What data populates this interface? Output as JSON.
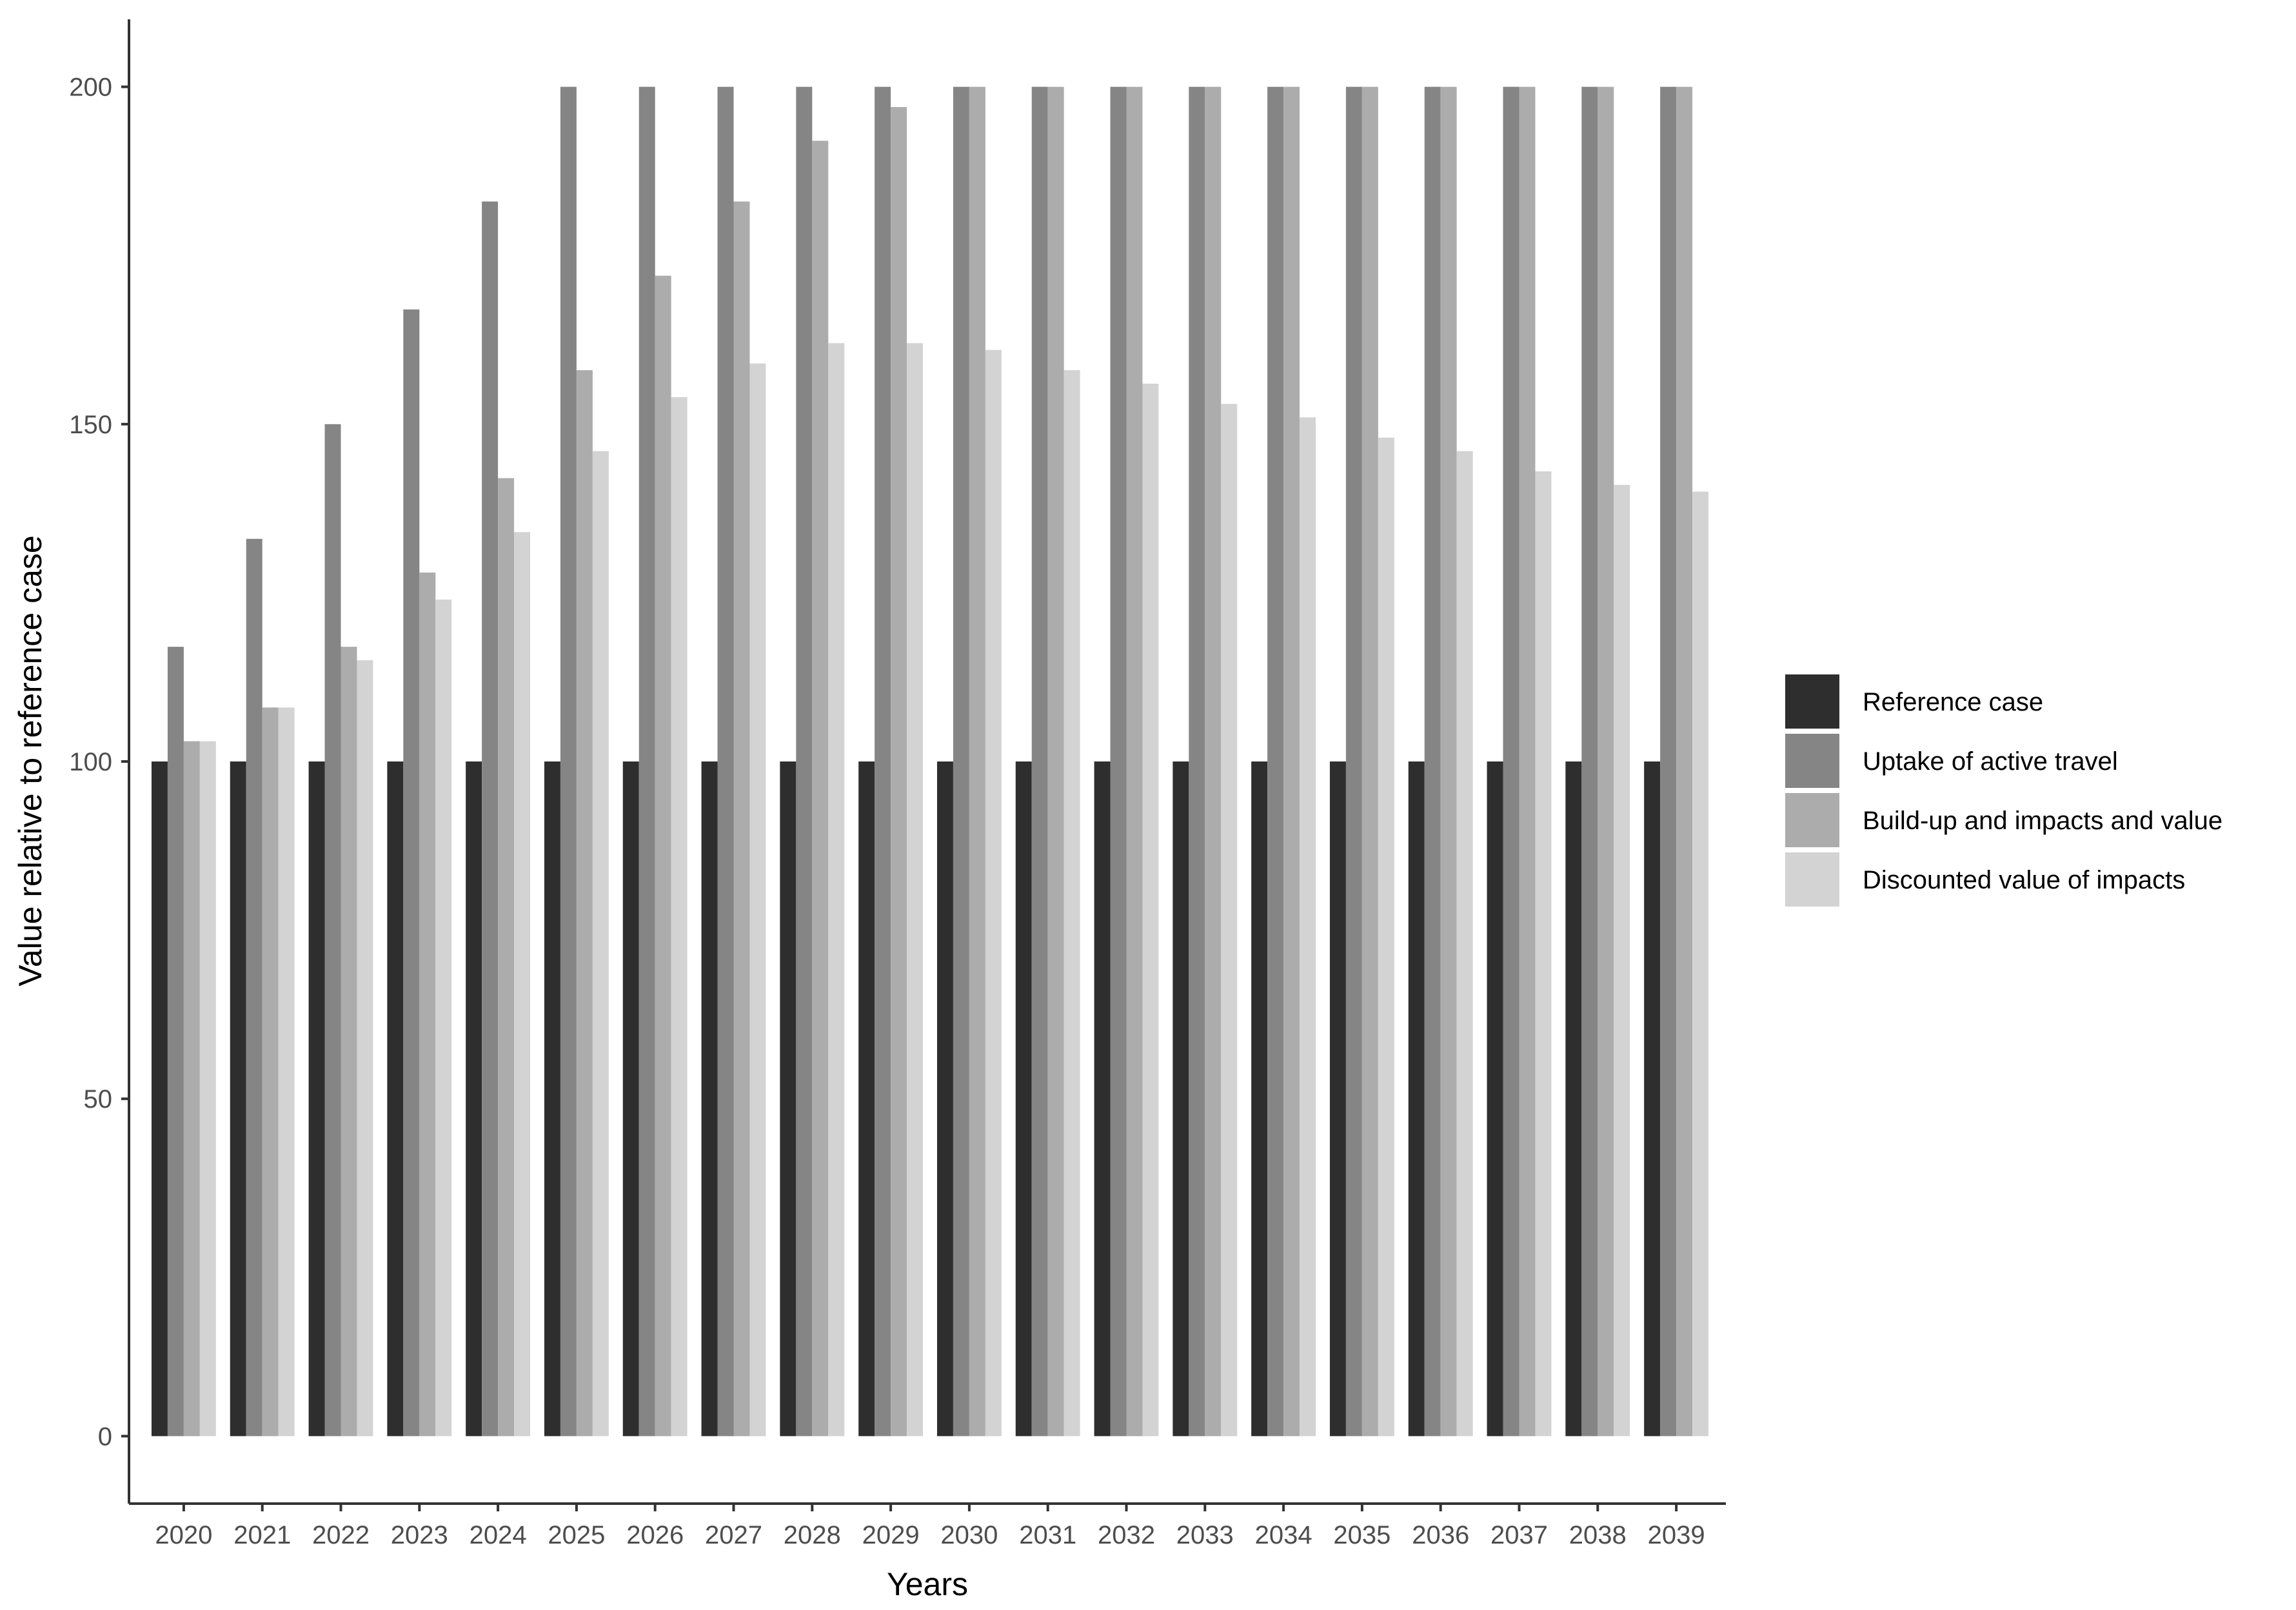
{
  "chart_data": {
    "type": "bar",
    "title": "",
    "xlabel": "Years",
    "ylabel": "Value relative to reference case",
    "ylim": [
      -10,
      210
    ],
    "yticks": [
      0,
      50,
      100,
      150,
      200
    ],
    "grid": false,
    "legend_position": "right",
    "categories": [
      "2020",
      "2021",
      "2022",
      "2023",
      "2024",
      "2025",
      "2026",
      "2027",
      "2028",
      "2029",
      "2030",
      "2031",
      "2032",
      "2033",
      "2034",
      "2035",
      "2036",
      "2037",
      "2038",
      "2039"
    ],
    "series": [
      {
        "name": "Reference case",
        "color": "#2e2e2e",
        "values": [
          100,
          100,
          100,
          100,
          100,
          100,
          100,
          100,
          100,
          100,
          100,
          100,
          100,
          100,
          100,
          100,
          100,
          100,
          100,
          100
        ]
      },
      {
        "name": "Uptake of active travel",
        "color": "#858585",
        "values": [
          117,
          133,
          150,
          167,
          183,
          200,
          200,
          200,
          200,
          200,
          200,
          200,
          200,
          200,
          200,
          200,
          200,
          200,
          200,
          200
        ]
      },
      {
        "name": "Build-up and impacts and value",
        "color": "#acacac",
        "values": [
          103,
          108,
          117,
          128,
          142,
          158,
          172,
          183,
          192,
          197,
          200,
          200,
          200,
          200,
          200,
          200,
          200,
          200,
          200,
          200
        ]
      },
      {
        "name": "Discounted value of impacts",
        "color": "#d3d3d3",
        "values": [
          103,
          108,
          115,
          124,
          134,
          146,
          154,
          159,
          162,
          162,
          161,
          158,
          156,
          153,
          151,
          148,
          146,
          143,
          141,
          140
        ]
      }
    ]
  }
}
